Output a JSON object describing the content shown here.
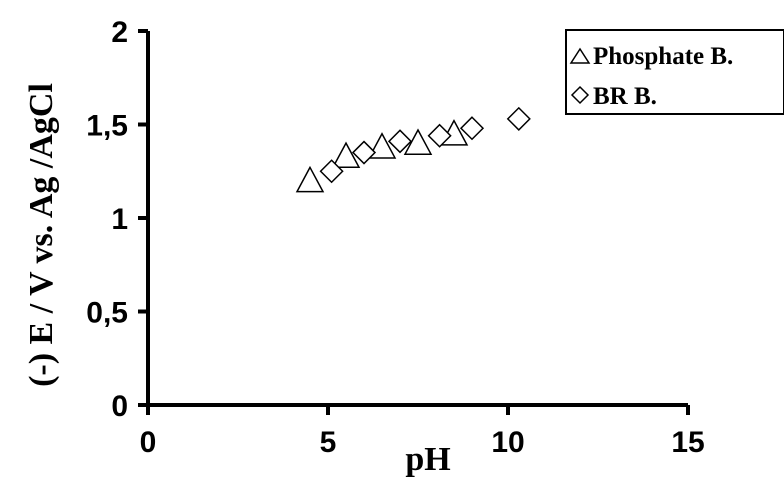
{
  "chart_data": {
    "type": "scatter",
    "title": "",
    "xlabel": "pH",
    "ylabel": "(-)  E / V vs. Ag /AgCl",
    "xlim": [
      0,
      15
    ],
    "ylim": [
      0,
      2
    ],
    "x_ticks": [
      "0",
      "5",
      "10",
      "15"
    ],
    "y_ticks": [
      "0",
      "0,5",
      "1",
      "1,5",
      "2"
    ],
    "grid": false,
    "legend_position": "top-right",
    "series": [
      {
        "name": "Phosphate B.",
        "marker": "triangle",
        "x": [
          4.5,
          5.5,
          6.5,
          7.5,
          8.5
        ],
        "y": [
          1.2,
          1.33,
          1.38,
          1.4,
          1.45
        ]
      },
      {
        "name": "BR B.",
        "marker": "diamond",
        "x": [
          5.1,
          6.0,
          7.0,
          8.1,
          9.0,
          10.3
        ],
        "y": [
          1.25,
          1.35,
          1.41,
          1.44,
          1.48,
          1.53
        ]
      }
    ],
    "colors": {
      "axis": "#000000",
      "marker_stroke": "#000000",
      "marker_fill": "#ffffff"
    }
  }
}
